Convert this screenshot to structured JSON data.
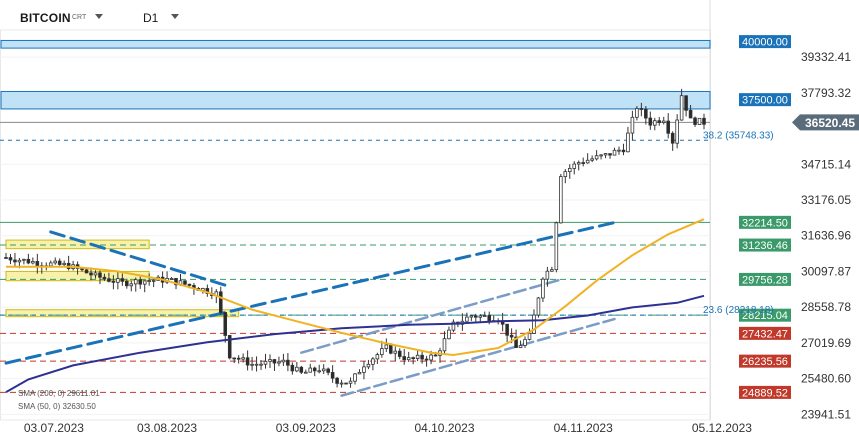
{
  "header": {
    "symbol": "BITCOIN",
    "symbol_suffix": "CRT",
    "timeframe": "D1"
  },
  "legend": {
    "sma200": "SMA (200, 0) 29611.01",
    "sma50": "SMA (50, 0) 32630.50"
  },
  "colors": {
    "candle_up": "#6a6a6a",
    "candle_down": "#2a2a2a",
    "sma200": "#2e3192",
    "sma50": "#f0b323",
    "trendline": "#1a73b8",
    "channel": "#7a9cc6",
    "resistance_fill": "#bfe2f7",
    "support_fill": "#f7f0a0",
    "green_level": "#3a9a6a",
    "red_level": "#c0392b",
    "current_price_bg": "#5a6b7a"
  },
  "chart_data": {
    "type": "candlestick",
    "instrument": "BITCOIN",
    "timeframe": "D1",
    "x_ticks": [
      "03.07.2023",
      "03.08.2023",
      "03.09.2023",
      "04.10.2023",
      "04.11.2023",
      "05.12.2023"
    ],
    "y_ticks": [
      39332.41,
      37793.32,
      34715.14,
      33176.05,
      31636.96,
      30097.87,
      28558.78,
      27019.69,
      25480.6,
      23941.51
    ],
    "ylim": [
      23700,
      40500
    ],
    "current_price": "36520.45",
    "levels": [
      {
        "label": "40000.00",
        "value": 40000.0,
        "style": "zone",
        "color": "blue"
      },
      {
        "label": "37500.00",
        "value": 37500.0,
        "style": "zone",
        "color": "blue"
      },
      {
        "label": "32214.50",
        "value": 32214.5,
        "style": "solid",
        "color": "green"
      },
      {
        "label": "31236.46",
        "value": 31236.46,
        "style": "dashed",
        "color": "green"
      },
      {
        "label": "29756.28",
        "value": 29756.28,
        "style": "dashed",
        "color": "green"
      },
      {
        "label": "28215.04",
        "value": 28215.04,
        "style": "dashed",
        "color": "green"
      },
      {
        "label": "27432.47",
        "value": 27432.47,
        "style": "dashed",
        "color": "red"
      },
      {
        "label": "26235.56",
        "value": 26235.56,
        "style": "dashed",
        "color": "red"
      },
      {
        "label": "24889.52",
        "value": 24889.52,
        "style": "dashed",
        "color": "red"
      }
    ],
    "fib_labels": [
      {
        "label": "38.2 (35748.33)",
        "value": 35748.33
      },
      {
        "label": "23.6 (28218.18)",
        "value": 28218.18
      }
    ],
    "series": [
      {
        "name": "SMA (200, 0)",
        "points": [
          [
            0,
            24900
          ],
          [
            5,
            25450
          ],
          [
            15,
            26050
          ],
          [
            30,
            26600
          ],
          [
            45,
            27050
          ],
          [
            60,
            27400
          ],
          [
            75,
            27650
          ],
          [
            90,
            27800
          ],
          [
            100,
            27850
          ],
          [
            110,
            27950
          ],
          [
            120,
            28000
          ],
          [
            130,
            28200
          ],
          [
            140,
            28550
          ],
          [
            150,
            28750
          ],
          [
            156,
            29050
          ]
        ]
      },
      {
        "name": "SMA (50, 0)",
        "points": [
          [
            0,
            30300
          ],
          [
            15,
            30300
          ],
          [
            25,
            30100
          ],
          [
            35,
            29750
          ],
          [
            45,
            29200
          ],
          [
            55,
            28450
          ],
          [
            65,
            27950
          ],
          [
            75,
            27450
          ],
          [
            85,
            27000
          ],
          [
            95,
            26600
          ],
          [
            100,
            26500
          ],
          [
            110,
            26800
          ],
          [
            118,
            27600
          ],
          [
            125,
            28600
          ],
          [
            132,
            29700
          ],
          [
            140,
            30800
          ],
          [
            148,
            31700
          ],
          [
            156,
            32350
          ]
        ]
      }
    ]
  }
}
